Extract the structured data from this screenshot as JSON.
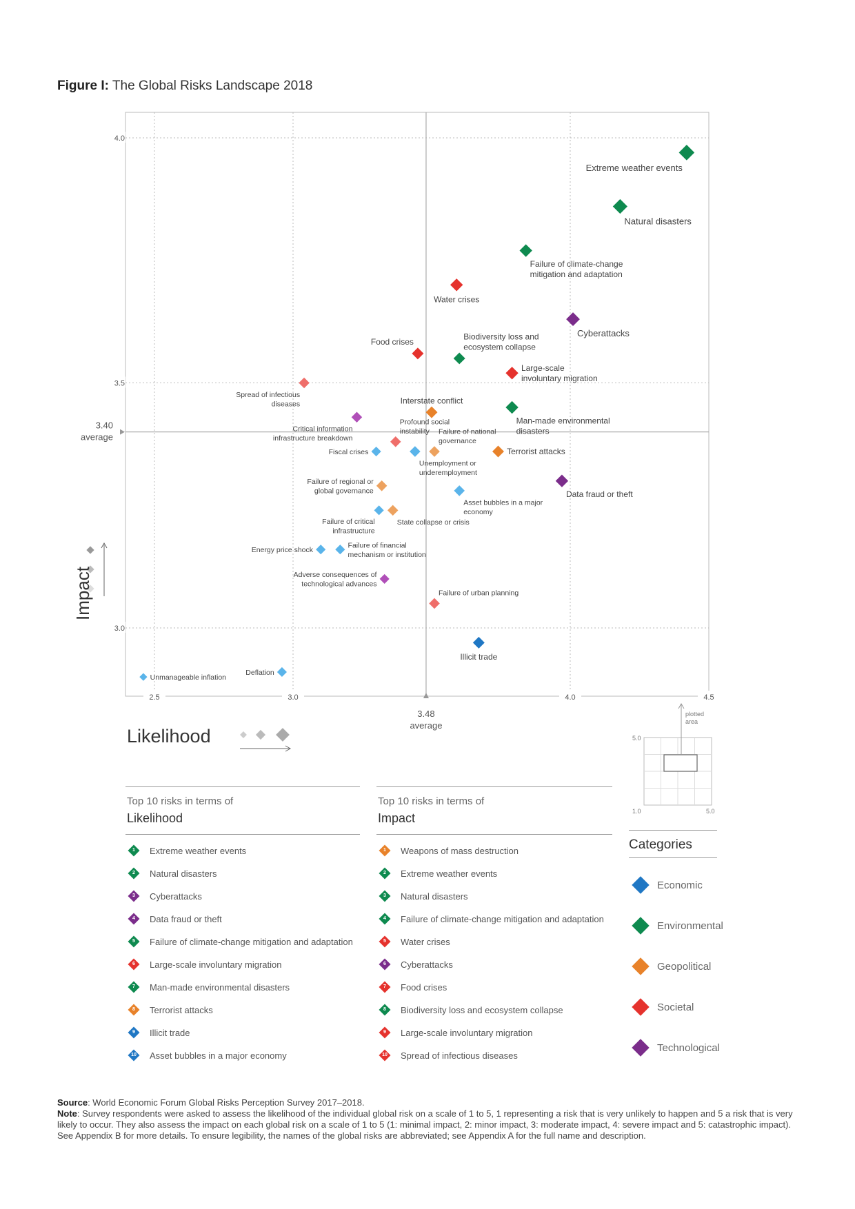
{
  "title": {
    "bold": "Figure I:",
    "rest": "The Global Risks Landscape 2018"
  },
  "colors": {
    "Economic": "#1f77c4",
    "Environmental": "#0e8a4f",
    "Geopolitical": "#e8822a",
    "Societal": "#e5322d",
    "Technological": "#7b2d8b"
  },
  "chart_data": {
    "type": "scatter",
    "title": "The Global Risks Landscape 2018",
    "xlabel": "Likelihood",
    "ylabel": "Impact",
    "xlim": [
      2.45,
      4.5
    ],
    "ylim": [
      2.85,
      4.05
    ],
    "xticks": [
      "2.5",
      "3.0",
      "4.0",
      "4.5"
    ],
    "yticks": [
      "3.0",
      "3.5",
      "4.0"
    ],
    "average_x": {
      "value": 3.48,
      "label": "3.48",
      "sub": "average"
    },
    "average_y": {
      "value": 3.4,
      "label": "3.40",
      "sub": "average"
    },
    "points": [
      {
        "name": "Extreme weather events",
        "label": [
          "Extreme weather events"
        ],
        "x": 4.42,
        "y": 3.97,
        "cat": "Environmental",
        "size": 16,
        "pos": "below-left"
      },
      {
        "name": "Natural disasters",
        "label": [
          "Natural disasters"
        ],
        "x": 4.18,
        "y": 3.86,
        "cat": "Environmental",
        "size": 15,
        "pos": "below-right"
      },
      {
        "name": "Failure of climate-change mitigation and adaptation",
        "label": [
          "Failure of climate-change",
          "mitigation and adaptation"
        ],
        "x": 3.84,
        "y": 3.77,
        "cat": "Environmental",
        "size": 13,
        "pos": "below-right"
      },
      {
        "name": "Water crises",
        "label": [
          "Water crises"
        ],
        "x": 3.59,
        "y": 3.7,
        "cat": "Societal",
        "size": 13,
        "pos": "below"
      },
      {
        "name": "Cyberattacks",
        "label": [
          "Cyberattacks"
        ],
        "x": 4.01,
        "y": 3.63,
        "cat": "Technological",
        "size": 14,
        "pos": "below-right"
      },
      {
        "name": "Food crises",
        "label": [
          "Food crises"
        ],
        "x": 3.45,
        "y": 3.56,
        "cat": "Societal",
        "size": 12,
        "pos": "above-left"
      },
      {
        "name": "Biodiversity loss and ecosystem collapse",
        "label": [
          "Biodiversity loss and",
          "ecosystem collapse"
        ],
        "x": 3.6,
        "y": 3.55,
        "cat": "Environmental",
        "size": 12,
        "pos": "above-right"
      },
      {
        "name": "Large-scale involuntary migration",
        "label": [
          "Large-scale",
          "involuntary migration"
        ],
        "x": 3.79,
        "y": 3.52,
        "cat": "Societal",
        "size": 13,
        "pos": "right"
      },
      {
        "name": "Spread of infectious diseases",
        "label": [
          "Spread of infectious",
          "diseases"
        ],
        "x": 3.04,
        "y": 3.5,
        "cat": "Societal",
        "size": 11,
        "pos": "below-left"
      },
      {
        "name": "Interstate conflict",
        "label": [
          "Interstate conflict"
        ],
        "x": 3.5,
        "y": 3.44,
        "cat": "Geopolitical",
        "size": 12,
        "pos": "above"
      },
      {
        "name": "Man-made environmental disasters",
        "label": [
          "Man-made environmental",
          "disasters"
        ],
        "x": 3.79,
        "y": 3.45,
        "cat": "Environmental",
        "size": 13,
        "pos": "below-right"
      },
      {
        "name": "Critical information infrastructure breakdown",
        "label": [
          "Critical information",
          "infrastructure breakdown"
        ],
        "x": 3.23,
        "y": 3.43,
        "cat": "Technological",
        "size": 11,
        "pos": "below-left"
      },
      {
        "name": "Profound social instability",
        "label": [
          "Profound social",
          "instability"
        ],
        "x": 3.37,
        "y": 3.38,
        "cat": "Societal",
        "size": 11,
        "pos": "above-right"
      },
      {
        "name": "Fiscal crises",
        "label": [
          "Fiscal crises"
        ],
        "x": 3.3,
        "y": 3.36,
        "cat": "Economic",
        "size": 10,
        "pos": "left"
      },
      {
        "name": "Unemployment or underemployment",
        "label": [
          "Unemployment or",
          "underemployment"
        ],
        "x": 3.44,
        "y": 3.36,
        "cat": "Economic",
        "size": 11,
        "pos": "below-right"
      },
      {
        "name": "Failure of national governance",
        "label": [
          "Failure of national",
          "governance"
        ],
        "x": 3.51,
        "y": 3.36,
        "cat": "Geopolitical",
        "size": 11,
        "pos": "above-right"
      },
      {
        "name": "Terrorist attacks",
        "label": [
          "Terrorist attacks"
        ],
        "x": 3.74,
        "y": 3.36,
        "cat": "Geopolitical",
        "size": 12,
        "pos": "right"
      },
      {
        "name": "Data fraud or theft",
        "label": [
          "Data fraud or theft"
        ],
        "x": 3.97,
        "y": 3.3,
        "cat": "Technological",
        "size": 13,
        "pos": "below-right"
      },
      {
        "name": "Failure of regional or global governance",
        "label": [
          "Failure of regional or",
          "global governance"
        ],
        "x": 3.32,
        "y": 3.29,
        "cat": "Geopolitical",
        "size": 11,
        "pos": "left"
      },
      {
        "name": "Asset bubbles in a major economy",
        "label": [
          "Asset bubbles in a major",
          "economy"
        ],
        "x": 3.6,
        "y": 3.28,
        "cat": "Economic",
        "size": 11,
        "pos": "below-right"
      },
      {
        "name": "Failure of critical infrastructure",
        "label": [
          "Failure of critical",
          "infrastructure"
        ],
        "x": 3.31,
        "y": 3.24,
        "cat": "Economic",
        "size": 10,
        "pos": "below-left"
      },
      {
        "name": "State collapse or crisis",
        "label": [
          "State collapse or crisis"
        ],
        "x": 3.36,
        "y": 3.24,
        "cat": "Geopolitical",
        "size": 11,
        "pos": "below-right"
      },
      {
        "name": "Energy price shock",
        "label": [
          "Energy price shock"
        ],
        "x": 3.1,
        "y": 3.16,
        "cat": "Economic",
        "size": 10,
        "pos": "left"
      },
      {
        "name": "Failure of financial mechanism or institution",
        "label": [
          "Failure of financial",
          "mechanism or institution"
        ],
        "x": 3.17,
        "y": 3.16,
        "cat": "Economic",
        "size": 10,
        "pos": "right"
      },
      {
        "name": "Adverse consequences of technological advances",
        "label": [
          "Adverse consequences of",
          "technological advances"
        ],
        "x": 3.33,
        "y": 3.1,
        "cat": "Technological",
        "size": 10,
        "pos": "left"
      },
      {
        "name": "Failure of urban planning",
        "label": [
          "Failure of urban planning"
        ],
        "x": 3.51,
        "y": 3.05,
        "cat": "Societal",
        "size": 11,
        "pos": "above-right"
      },
      {
        "name": "Illicit trade",
        "label": [
          "Illicit trade"
        ],
        "x": 3.67,
        "y": 2.97,
        "cat": "Economic",
        "size": 12,
        "pos": "below"
      },
      {
        "name": "Deflation",
        "label": [
          "Deflation"
        ],
        "x": 2.96,
        "y": 2.91,
        "cat": "Economic",
        "size": 10,
        "pos": "left"
      },
      {
        "name": "Unmanageable inflation",
        "label": [
          "Unmanageable inflation"
        ],
        "x": 2.46,
        "y": 2.9,
        "cat": "Economic",
        "size": 8,
        "pos": "right"
      }
    ]
  },
  "inset": {
    "top": "5.0",
    "bl": "1.0",
    "br": "5.0",
    "label1": "plotted",
    "label2": "area"
  },
  "likelihood_panel": {
    "head": "Top 10 risks in terms of",
    "title": "Likelihood",
    "items": [
      {
        "n": "1",
        "text": "Extreme weather events",
        "cat": "Environmental"
      },
      {
        "n": "2",
        "text": "Natural disasters",
        "cat": "Environmental"
      },
      {
        "n": "3",
        "text": "Cyberattacks",
        "cat": "Technological"
      },
      {
        "n": "4",
        "text": "Data fraud or theft",
        "cat": "Technological"
      },
      {
        "n": "5",
        "text": "Failure of climate-change mitigation and adaptation",
        "cat": "Environmental"
      },
      {
        "n": "6",
        "text": "Large-scale involuntary migration",
        "cat": "Societal"
      },
      {
        "n": "7",
        "text": "Man-made environmental disasters",
        "cat": "Environmental"
      },
      {
        "n": "8",
        "text": "Terrorist attacks",
        "cat": "Geopolitical"
      },
      {
        "n": "9",
        "text": "Illicit trade",
        "cat": "Economic"
      },
      {
        "n": "10",
        "text": "Asset bubbles in a major economy",
        "cat": "Economic"
      }
    ]
  },
  "impact_panel": {
    "head": "Top 10 risks in terms of",
    "title": "Impact",
    "items": [
      {
        "n": "1",
        "text": "Weapons of mass destruction",
        "cat": "Geopolitical"
      },
      {
        "n": "2",
        "text": "Extreme weather events",
        "cat": "Environmental"
      },
      {
        "n": "3",
        "text": "Natural disasters",
        "cat": "Environmental"
      },
      {
        "n": "4",
        "text": "Failure of climate-change mitigation and adaptation",
        "cat": "Environmental"
      },
      {
        "n": "5",
        "text": "Water crises",
        "cat": "Societal"
      },
      {
        "n": "6",
        "text": "Cyberattacks",
        "cat": "Technological"
      },
      {
        "n": "7",
        "text": "Food crises",
        "cat": "Societal"
      },
      {
        "n": "8",
        "text": "Biodiversity loss and ecosystem collapse",
        "cat": "Environmental"
      },
      {
        "n": "9",
        "text": "Large-scale involuntary migration",
        "cat": "Societal"
      },
      {
        "n": "10",
        "text": "Spread of infectious diseases",
        "cat": "Societal"
      }
    ]
  },
  "categories": {
    "title": "Categories",
    "items": [
      "Economic",
      "Environmental",
      "Geopolitical",
      "Societal",
      "Technological"
    ]
  },
  "footer": {
    "source_label": "Source",
    "source_text": ": World Economic Forum Global Risks Perception Survey 2017–2018.",
    "note_label": "Note",
    "note_text": ": Survey respondents were asked to assess the likelihood of the individual global risk on a scale of 1 to 5, 1 representing a risk that is very unlikely to happen and 5 a risk that is very likely to occur. They also assess the impact on each global risk on a scale of 1 to 5 (1: minimal impact, 2: minor impact, 3: moderate impact, 4: severe impact and 5: catastrophic impact). See Appendix B for more details. To ensure legibility, the names of the global risks are abbreviated; see Appendix A for the full name and description."
  }
}
